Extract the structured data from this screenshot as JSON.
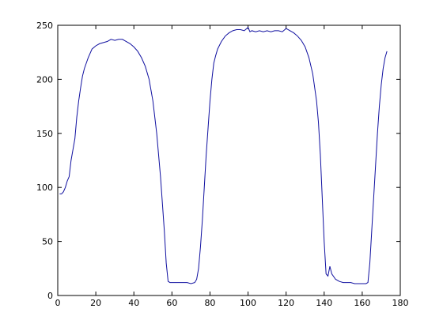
{
  "chart_data": {
    "type": "line",
    "x": [
      1,
      2,
      3,
      4,
      5,
      6,
      7,
      8,
      9,
      10,
      11,
      12,
      13,
      14,
      15,
      16,
      17,
      18,
      20,
      22,
      24,
      26,
      28,
      30,
      32,
      34,
      36,
      38,
      40,
      42,
      44,
      46,
      48,
      50,
      52,
      53,
      54,
      55,
      56,
      57,
      58,
      59,
      60,
      62,
      64,
      66,
      68,
      70,
      72,
      73,
      74,
      75,
      76,
      77,
      78,
      79,
      80,
      81,
      82,
      83,
      84,
      86,
      88,
      90,
      92,
      94,
      96,
      98,
      100,
      101,
      102,
      104,
      106,
      108,
      110,
      112,
      114,
      116,
      118,
      120,
      122,
      124,
      126,
      128,
      130,
      132,
      134,
      136,
      137,
      138,
      139,
      140,
      141,
      142,
      143,
      144,
      146,
      148,
      150,
      152,
      154,
      156,
      158,
      160,
      162,
      163,
      164,
      165,
      166,
      167,
      168,
      169,
      170,
      171,
      172,
      173
    ],
    "series": [
      {
        "color": "#1010a0",
        "values": [
          94,
          94,
          96,
          100,
          106,
          110,
          125,
          135,
          145,
          165,
          180,
          192,
          203,
          210,
          215,
          220,
          224,
          228,
          231,
          233,
          234,
          235,
          237,
          236,
          237,
          237,
          235,
          233,
          230,
          226,
          220,
          212,
          200,
          180,
          150,
          130,
          110,
          85,
          60,
          30,
          13,
          12,
          12,
          12,
          12,
          12,
          12,
          11,
          12,
          15,
          25,
          45,
          70,
          100,
          130,
          155,
          180,
          200,
          215,
          222,
          228,
          235,
          240,
          243,
          245,
          246,
          246,
          245,
          248,
          244,
          245,
          244,
          245,
          244,
          245,
          244,
          245,
          245,
          244,
          247,
          245,
          243,
          240,
          236,
          230,
          220,
          205,
          180,
          160,
          130,
          90,
          50,
          20,
          18,
          27,
          20,
          15,
          13,
          12,
          12,
          12,
          11,
          11,
          11,
          11,
          12,
          30,
          60,
          90,
          120,
          150,
          175,
          195,
          210,
          220,
          226
        ]
      }
    ],
    "xlim": [
      0,
      180
    ],
    "xticks": [
      0,
      20,
      40,
      60,
      80,
      100,
      120,
      140,
      160,
      180
    ],
    "ylim": [
      0,
      250
    ],
    "yticks": [
      0,
      50,
      100,
      150,
      200,
      250
    ]
  }
}
